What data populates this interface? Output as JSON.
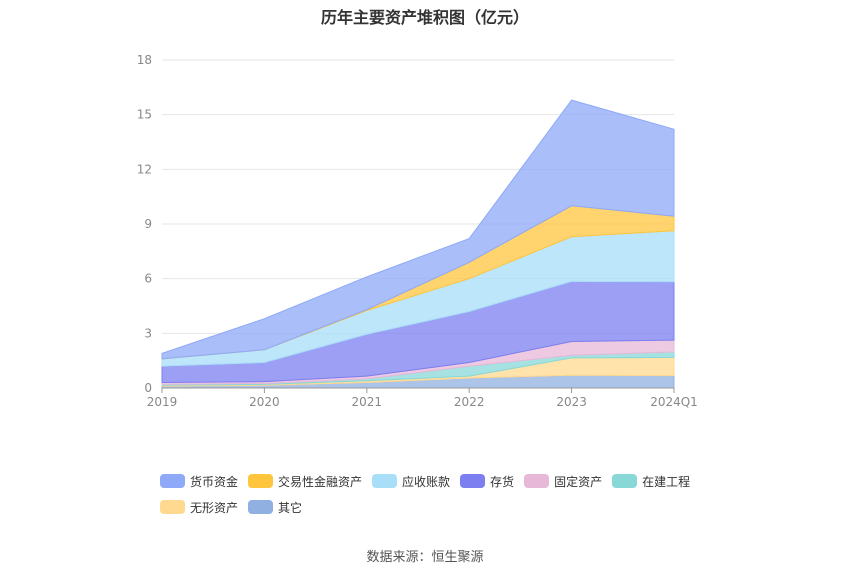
{
  "chart_data": {
    "type": "area",
    "stacked": true,
    "title": "历年主要资产堆积图（亿元）",
    "categories": [
      "2019",
      "2020",
      "2021",
      "2022",
      "2023",
      "2024Q1"
    ],
    "ylim": [
      0,
      18
    ],
    "yticks": [
      0,
      3,
      6,
      9,
      12,
      15,
      18
    ],
    "grid": true,
    "legend_position": "bottom",
    "series": [
      {
        "name": "其它",
        "color": "#8fb0e0",
        "values": [
          0.1,
          0.15,
          0.3,
          0.55,
          0.7,
          0.68
        ]
      },
      {
        "name": "无形资产",
        "color": "#ffd98f",
        "values": [
          0.05,
          0.05,
          0.1,
          0.1,
          0.95,
          1.0
        ]
      },
      {
        "name": "在建工程",
        "color": "#88d8d8",
        "values": [
          0.05,
          0.05,
          0.1,
          0.55,
          0.15,
          0.3
        ]
      },
      {
        "name": "固定资产",
        "color": "#e8b8d8",
        "values": [
          0.1,
          0.1,
          0.15,
          0.2,
          0.75,
          0.65
        ]
      },
      {
        "name": "存货",
        "color": "#7b7ff0",
        "values": [
          0.9,
          1.05,
          2.3,
          2.8,
          3.3,
          3.2
        ]
      },
      {
        "name": "应收账款",
        "color": "#a8def8",
        "values": [
          0.4,
          0.7,
          1.3,
          1.8,
          2.45,
          2.8
        ]
      },
      {
        "name": "交易性金融资产",
        "color": "#ffc53d",
        "values": [
          0.0,
          0.0,
          0.05,
          0.9,
          1.7,
          0.8
        ]
      },
      {
        "name": "货币资金",
        "color": "#8ea9f8",
        "values": [
          0.3,
          1.7,
          1.8,
          1.3,
          5.8,
          4.77
        ]
      }
    ],
    "legend_order": [
      "货币资金",
      "交易性金融资产",
      "应收账款",
      "存货",
      "固定资产",
      "在建工程",
      "无形资产",
      "其它"
    ]
  },
  "source_text": "数据来源：恒生聚源"
}
